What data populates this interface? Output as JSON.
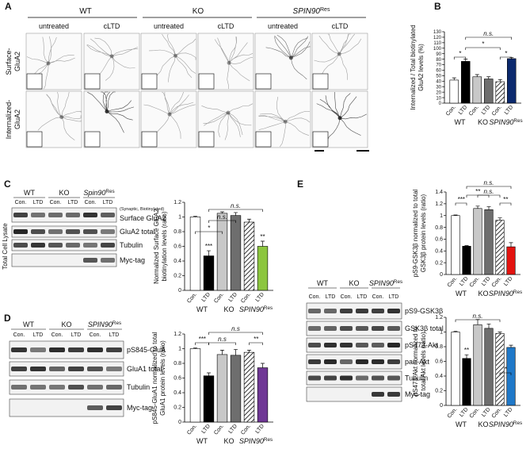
{
  "panel_labels": [
    "A",
    "B",
    "C",
    "D",
    "E"
  ],
  "micrographs": {
    "groups": [
      {
        "text": "WT"
      },
      {
        "text": "KO"
      },
      {
        "text": "SPIN90",
        "sup": "Res"
      }
    ],
    "columns": [
      "untreated",
      "cLTD",
      "untreated",
      "cLTD",
      "untreated",
      "cLTD"
    ],
    "rows": [
      [
        "Surface-",
        "GluA2"
      ],
      [
        "Internalized-",
        "GluA2"
      ]
    ]
  },
  "blots": [
    {
      "groups": [
        {
          "text": "WT"
        },
        {
          "text": "KO"
        },
        {
          "text": "Spin90",
          "sup": "Res"
        }
      ],
      "lanes": [
        "Con.",
        "LTD",
        "Con.",
        "LTD",
        "Con.",
        "LTD"
      ],
      "note": "(Synaptic, Biotinylated)",
      "rows": [
        "Surface GluA2",
        "GluA2 total",
        "Tubulin",
        "Myc-tag"
      ],
      "side": "Total Cell Lysate"
    },
    {
      "groups": [
        {
          "text": "WT"
        },
        {
          "text": "KO"
        },
        {
          "text": "SPIN90",
          "sup": "Res"
        }
      ],
      "lanes": [
        "Con.",
        "LTD",
        "Con.",
        "LTD",
        "Con.",
        "LTD"
      ],
      "rows": [
        "pS845-GluA",
        "GluA1 total",
        "Tubulin",
        "Myc-tag"
      ]
    },
    {
      "groups": [
        {
          "text": "WT"
        },
        {
          "text": "KO"
        },
        {
          "text": "SPIN90",
          "sup": "Res"
        }
      ],
      "lanes": [
        "Con.",
        "LTD",
        "Con.",
        "LTD",
        "Con.",
        "LTD"
      ],
      "rows": [
        "pS9-GSK3β",
        "GSK3β total",
        "pS473-Akt",
        "pan-Akt",
        "Tubulin",
        "Myc-tag"
      ]
    }
  ],
  "chart_data": [
    {
      "type": "bar",
      "ylabel": [
        "Internalized / Total biotinylated",
        "GluA2 levels (%)"
      ],
      "categories": [
        "Con.",
        "LTD",
        "Con.",
        "LTD",
        "Con.",
        "LTD"
      ],
      "groups": [
        {
          "text": "WT"
        },
        {
          "text": "KO"
        },
        {
          "text": "SPIN90",
          "sup": "Res"
        }
      ],
      "values": [
        42,
        76,
        48,
        44,
        39,
        81
      ],
      "errors": [
        4,
        4,
        4,
        4,
        4,
        2
      ],
      "colors": [
        "#ffffff",
        "#000000",
        "#c8c8c8",
        "#6e6e6e",
        "#ffffff",
        "#0c2a6e"
      ],
      "hatched": [
        false,
        false,
        false,
        false,
        true,
        false
      ],
      "ylim": [
        0,
        130
      ],
      "yticks": [
        0,
        10,
        20,
        30,
        40,
        50,
        60,
        70,
        80,
        90,
        100,
        110,
        120,
        130
      ],
      "annotations": [
        "*",
        "n.s.",
        "*",
        "*"
      ]
    },
    {
      "type": "bar",
      "ylabel": [
        "Normalized Surface GluA2",
        "biotinylation levels (ratio)"
      ],
      "categories": [
        "Con.",
        "LTD",
        "Con.",
        "LTD",
        "Con.",
        "LTD"
      ],
      "groups": [
        {
          "text": "WT"
        },
        {
          "text": "KO"
        },
        {
          "text": "SPIN90",
          "sup": "Res"
        }
      ],
      "values": [
        1.0,
        0.47,
        1.05,
        1.02,
        0.93,
        0.6
      ],
      "errors": [
        0.01,
        0.07,
        0.02,
        0.04,
        0.04,
        0.07
      ],
      "colors": [
        "#ffffff",
        "#000000",
        "#c8c8c8",
        "#6e6e6e",
        "#ffffff",
        "#8cc63f"
      ],
      "hatched": [
        false,
        false,
        false,
        false,
        true,
        false
      ],
      "ylim": [
        0,
        1.2
      ],
      "yticks": [
        0,
        0.2,
        0.4,
        0.6,
        0.8,
        1,
        1.2
      ],
      "annotations": [
        "*",
        "n.s.",
        "n.s.",
        "***",
        "**"
      ]
    },
    {
      "type": "bar",
      "ylabel": [
        "pS845-GluA1 normalized to total",
        "GluA1 protein levels (ratio)"
      ],
      "categories": [
        "Con.",
        "LTD",
        "Con.",
        "LTD",
        "Con.",
        "LTD"
      ],
      "groups": [
        {
          "text": "WT"
        },
        {
          "text": "KO"
        },
        {
          "text": "SPIN90",
          "sup": "Res"
        }
      ],
      "values": [
        1.0,
        0.63,
        0.92,
        0.91,
        0.95,
        0.74
      ],
      "errors": [
        0.01,
        0.04,
        0.06,
        0.08,
        0.03,
        0.06
      ],
      "colors": [
        "#ffffff",
        "#000000",
        "#c8c8c8",
        "#6e6e6e",
        "#ffffff",
        "#6f3795"
      ],
      "hatched": [
        false,
        false,
        false,
        false,
        true,
        false
      ],
      "ylim": [
        0,
        1.2
      ],
      "yticks": [
        0,
        0.2,
        0.4,
        0.6,
        0.8,
        1,
        1.2
      ],
      "annotations": [
        "***",
        "n.s",
        "n.s",
        "**"
      ]
    },
    {
      "type": "bar",
      "ylabel": [
        "pS9-GSK3β normalized to total",
        "GSK3β protein levels (ratio)"
      ],
      "categories": [
        "Con.",
        "LTD",
        "Con.",
        "LTD",
        "Con.",
        "LTD"
      ],
      "groups": [
        {
          "text": "WT"
        },
        {
          "text": "KO"
        },
        {
          "text": "SPIN90",
          "sup": "Res"
        }
      ],
      "values": [
        1.0,
        0.48,
        1.12,
        1.1,
        0.92,
        0.47
      ],
      "errors": [
        0.01,
        0.01,
        0.04,
        0.05,
        0.04,
        0.07
      ],
      "colors": [
        "#ffffff",
        "#000000",
        "#c8c8c8",
        "#6e6e6e",
        "#ffffff",
        "#e3130f"
      ],
      "hatched": [
        false,
        false,
        false,
        false,
        true,
        false
      ],
      "ylim": [
        0,
        1.4
      ],
      "yticks": [
        0,
        0.2,
        0.4,
        0.6,
        0.8,
        1,
        1.2,
        1.4
      ],
      "annotations": [
        "n.s.",
        "***",
        "**",
        "n.s.",
        "**"
      ]
    },
    {
      "type": "bar",
      "ylabel": [
        "pS473-Akt normalized to",
        "total Akt levels (ratio)"
      ],
      "categories": [
        "Con.",
        "LTD",
        "Con.",
        "LTD",
        "Con.",
        "LTD"
      ],
      "groups": [
        {
          "text": "WT"
        },
        {
          "text": "KO"
        },
        {
          "text": "SPIN90",
          "sup": "Res"
        }
      ],
      "values": [
        1.0,
        0.64,
        1.1,
        1.05,
        0.98,
        0.79
      ],
      "errors": [
        0.01,
        0.05,
        0.07,
        0.06,
        0.02,
        0.03
      ],
      "colors": [
        "#ffffff",
        "#000000",
        "#c8c8c8",
        "#6e6e6e",
        "#ffffff",
        "#1f78c8"
      ],
      "hatched": [
        false,
        false,
        false,
        false,
        true,
        false
      ],
      "ylim": [
        0,
        1.2
      ],
      "yticks": [
        0,
        0.2,
        0.4,
        0.6,
        0.8,
        1,
        1.2
      ],
      "annotations": [
        "n.s.",
        "**",
        "*"
      ]
    }
  ]
}
